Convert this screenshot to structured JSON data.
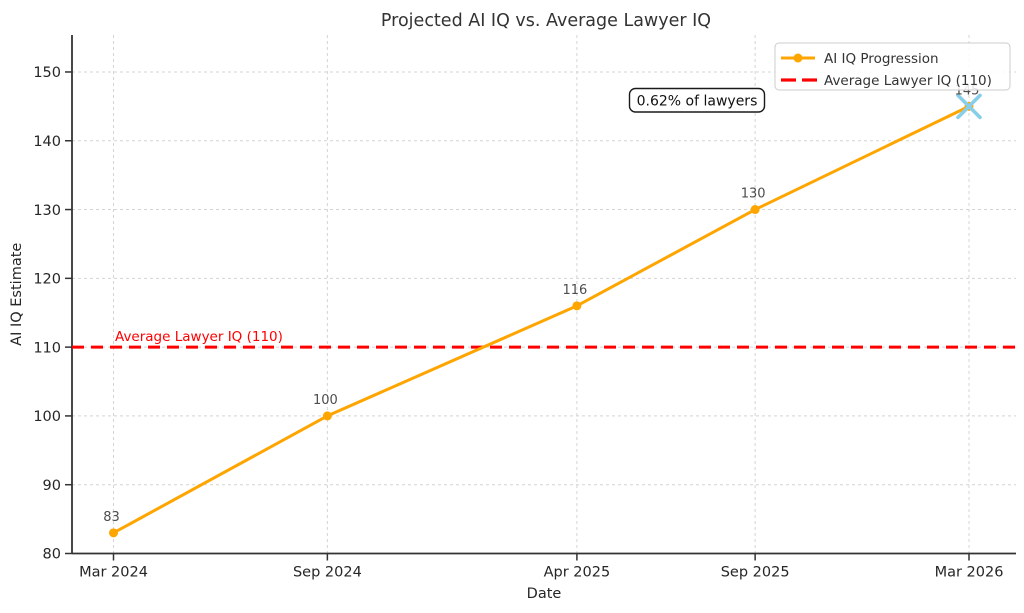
{
  "chart_data": {
    "type": "line",
    "title": "Projected AI IQ vs. Average Lawyer IQ",
    "xlabel": "Date",
    "ylabel": "AI IQ Estimate",
    "x_tick_labels": [
      "Mar 2024",
      "Sep 2024",
      "Apr 2025",
      "Sep 2025",
      "Mar 2026"
    ],
    "y_ticks": [
      80,
      90,
      100,
      110,
      120,
      130,
      140,
      150
    ],
    "ylim": [
      80,
      155
    ],
    "grid": true,
    "legend_position": "upper right",
    "series": [
      {
        "name": "AI IQ Progression",
        "type": "line",
        "color": "#FFA500",
        "marker": "circle",
        "x": [
          "Mar 2024",
          "Sep 2024",
          "Apr 2025",
          "Sep 2025",
          "Mar 2026"
        ],
        "values": [
          83,
          100,
          116,
          130,
          145
        ],
        "point_labels": [
          "83",
          "100",
          "116",
          "130",
          "145"
        ],
        "final_marker": {
          "shape": "x",
          "color": "#87CEEB"
        }
      },
      {
        "name": "Average Lawyer IQ (110)",
        "type": "hline",
        "color": "#FF0000",
        "style": "dashed",
        "value": 110,
        "inline_label": "Average Lawyer IQ (110)"
      }
    ],
    "annotations": [
      {
        "text": "0.62% of lawyers",
        "near_x": "Mar 2026",
        "near_value": 145
      }
    ],
    "style_colors": {
      "grid": "#d4d4d4",
      "spine": "#333333",
      "tick_text": "#262626",
      "title_text": "#333333",
      "point_label_text": "#4d4d4d",
      "legend_border": "#cccccc",
      "annotation_border": "#1a1a1a"
    }
  }
}
